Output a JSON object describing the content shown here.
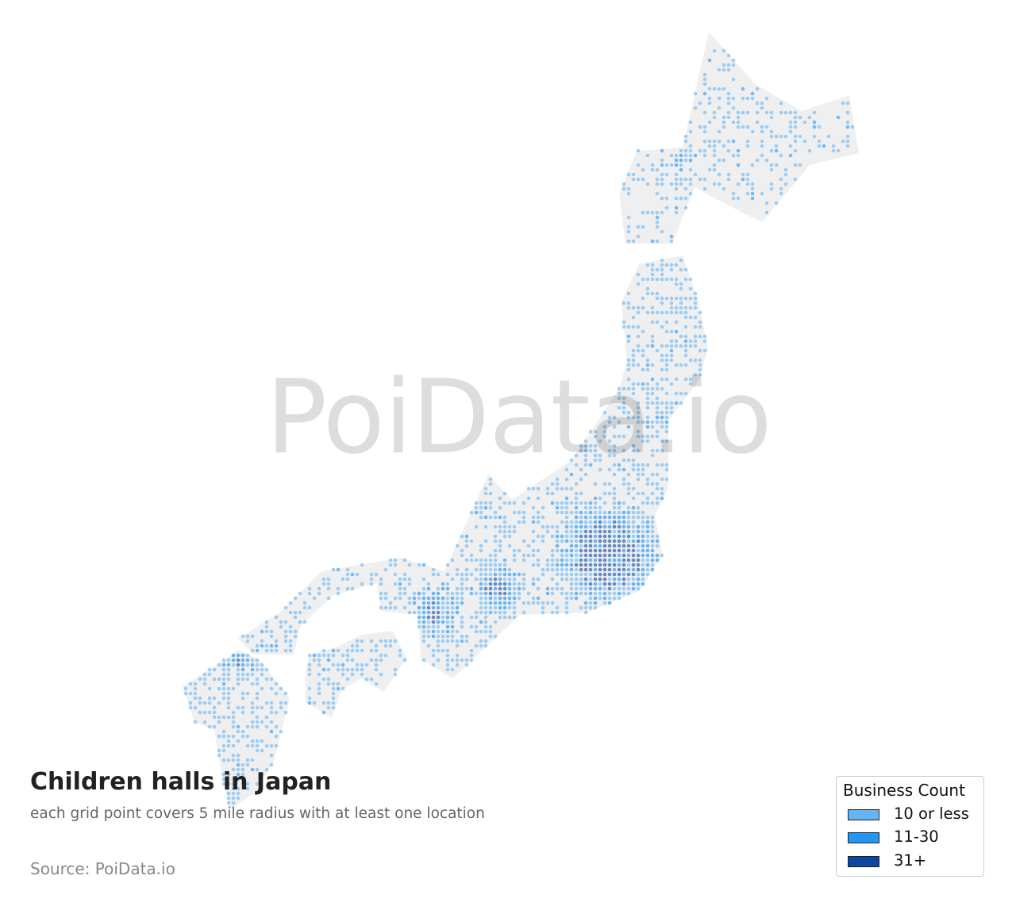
{
  "title": "Children halls in Japan",
  "subtitle": "each grid point covers 5 mile radius with at least one location",
  "source": "Source: PoiData.io",
  "watermark": "PoiData.io",
  "legend": {
    "title": "Business Count",
    "items": [
      {
        "label": "10 or less",
        "color": "#64b5f6"
      },
      {
        "label": "11-30",
        "color": "#2196f3"
      },
      {
        "label": "31+",
        "color": "#0d47a1"
      }
    ]
  },
  "colors": {
    "land": "#efefef",
    "background": "#ffffff"
  }
}
